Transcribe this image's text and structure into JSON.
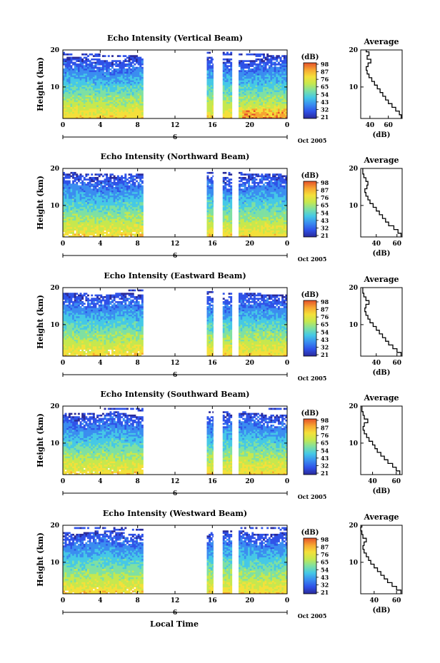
{
  "chart_data": {
    "type": "heatmap",
    "x_label": "Local Time",
    "y_label": "Height (km)",
    "date_label": "Oct 2005",
    "day_marker": "6",
    "x_ticks": [
      "0",
      "4",
      "8",
      "12",
      "16",
      "20",
      "0"
    ],
    "x_tick_values": [
      0,
      4,
      8,
      12,
      16,
      20,
      24
    ],
    "xlim": [
      0,
      24
    ],
    "ylim": [
      1.5,
      20
    ],
    "y_ticks": [
      "10",
      "20"
    ],
    "y_tick_values": [
      10,
      20
    ],
    "colorbar_unit": "(dB)",
    "colorscale": [
      "#2a2a9a",
      "#2f52e8",
      "#3a8df0",
      "#45c8e6",
      "#7ee0a2",
      "#c6e84e",
      "#f4e03a",
      "#f7a531",
      "#e4512a"
    ],
    "data_segments_hours": [
      [
        0,
        8.6
      ],
      [
        15.4,
        16.1
      ],
      [
        17.1,
        18.1
      ],
      [
        18.8,
        24
      ]
    ],
    "avg_unit_label": "(dB)",
    "panels": [
      {
        "title": "Echo Intensity (Vertical Beam)",
        "colorbar_ticks": [
          "98",
          "87",
          "76",
          "65",
          "54",
          "43",
          "32",
          "21"
        ],
        "cloud_top_km": 17.5,
        "avg_title": "Average",
        "avg_xticks": [
          "40",
          "60"
        ],
        "avg_xtick_values": [
          40,
          60
        ],
        "avg_xlim": [
          30,
          75
        ],
        "avg_profile": {
          "height_km": [
            2,
            3,
            4,
            5,
            6,
            7,
            8,
            9,
            10,
            11,
            12,
            13,
            14,
            15,
            16,
            17,
            18,
            19,
            20
          ],
          "db": [
            74,
            72,
            68,
            64,
            60,
            57,
            54,
            51,
            48,
            45,
            42,
            39,
            37,
            36,
            38,
            41,
            37,
            39,
            36
          ]
        }
      },
      {
        "title": "Echo Intensity (Northward Beam)",
        "colorbar_ticks": [
          "98",
          "87",
          "76",
          "65",
          "54",
          "43",
          "32",
          "21"
        ],
        "cloud_top_km": 17.8,
        "avg_title": "Average",
        "avg_xticks": [
          "40",
          "60"
        ],
        "avg_xtick_values": [
          40,
          60
        ],
        "avg_xlim": [
          25,
          65
        ],
        "avg_profile": {
          "height_km": [
            2,
            3,
            4,
            5,
            6,
            7,
            8,
            9,
            10,
            11,
            12,
            13,
            14,
            15,
            16,
            17,
            18,
            19,
            20
          ],
          "db": [
            64,
            61,
            57,
            52,
            49,
            46,
            43,
            40,
            37,
            34,
            32,
            30,
            29,
            31,
            32,
            30,
            28,
            27,
            27
          ]
        }
      },
      {
        "title": "Echo Intensity (Eastward Beam)",
        "colorbar_ticks": [
          "98",
          "87",
          "76",
          "65",
          "54",
          "43",
          "32",
          "21"
        ],
        "cloud_top_km": 17.8,
        "avg_title": "Average",
        "avg_xticks": [
          "40",
          "60"
        ],
        "avg_xtick_values": [
          40,
          60
        ],
        "avg_xlim": [
          25,
          65
        ],
        "avg_profile": {
          "height_km": [
            2,
            3,
            4,
            5,
            6,
            7,
            8,
            9,
            10,
            11,
            12,
            13,
            14,
            15,
            16,
            17,
            18,
            19,
            20
          ],
          "db": [
            64,
            60,
            56,
            52,
            49,
            46,
            43,
            40,
            37,
            34,
            32,
            30,
            29,
            30,
            33,
            30,
            28,
            27,
            27
          ]
        }
      },
      {
        "title": "Echo Intensity (Southward Beam)",
        "colorbar_ticks": [
          "98",
          "87",
          "76",
          "65",
          "54",
          "43",
          "32",
          "21"
        ],
        "cloud_top_km": 17.6,
        "avg_title": "Average",
        "avg_xticks": [
          "40",
          "60"
        ],
        "avg_xtick_values": [
          40,
          60
        ],
        "avg_xlim": [
          30,
          65
        ],
        "avg_profile": {
          "height_km": [
            2,
            3,
            4,
            5,
            6,
            7,
            8,
            9,
            10,
            11,
            12,
            13,
            14,
            15,
            16,
            17,
            18,
            19,
            20
          ],
          "db": [
            63,
            60,
            57,
            53,
            50,
            47,
            44,
            42,
            40,
            37,
            35,
            33,
            32,
            33,
            36,
            33,
            32,
            31,
            31
          ]
        }
      },
      {
        "title": "Echo Intensity (Westward Beam)",
        "colorbar_ticks": [
          "98",
          "87",
          "76",
          "65",
          "54",
          "43",
          "32",
          "21"
        ],
        "cloud_top_km": 17.9,
        "avg_title": "Average",
        "avg_xticks": [
          "40",
          "60"
        ],
        "avg_xtick_values": [
          40,
          60
        ],
        "avg_xlim": [
          28,
          65
        ],
        "avg_profile": {
          "height_km": [
            2,
            3,
            4,
            5,
            6,
            7,
            8,
            9,
            10,
            11,
            12,
            13,
            14,
            15,
            16,
            17,
            18,
            19,
            20
          ],
          "db": [
            64,
            60,
            56,
            52,
            49,
            46,
            43,
            40,
            37,
            35,
            33,
            31,
            30,
            31,
            33,
            30,
            29,
            28,
            29
          ]
        }
      }
    ]
  }
}
